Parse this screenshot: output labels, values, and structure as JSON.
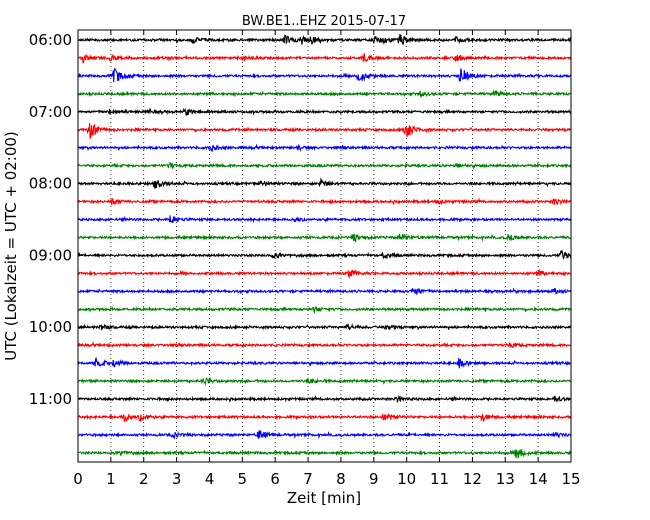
{
  "chart_data": {
    "type": "line",
    "title": "BW.BE1..EHZ 2015-07-17",
    "xlabel": "Zeit  [min]",
    "ylabel": "UTC (Lokalzeit = UTC + 02:00)",
    "xlim": [
      0,
      15
    ],
    "x_ticks": [
      "0",
      "1",
      "2",
      "3",
      "4",
      "5",
      "6",
      "7",
      "8",
      "9",
      "10",
      "11",
      "12",
      "13",
      "14",
      "15"
    ],
    "y_tick_labels": [
      "06:00",
      "07:00",
      "08:00",
      "09:00",
      "10:00",
      "11:00"
    ],
    "trace_start_minutes": [
      360,
      375,
      390,
      405,
      420,
      435,
      450,
      465,
      480,
      495,
      510,
      525,
      540,
      555,
      570,
      585,
      600,
      615,
      630,
      645,
      660,
      675,
      690,
      705
    ],
    "trace_colors": [
      "#000000",
      "#ff0000",
      "#0000ff",
      "#008000"
    ],
    "grid": "vertical dotted",
    "events": [
      {
        "trace": 0,
        "t": 3.5,
        "amp": 0.35
      },
      {
        "trace": 0,
        "t": 6.3,
        "amp": 0.5
      },
      {
        "trace": 0,
        "t": 6.8,
        "amp": 0.45
      },
      {
        "trace": 0,
        "t": 7.1,
        "amp": 0.45
      },
      {
        "trace": 0,
        "t": 9.0,
        "amp": 0.45
      },
      {
        "trace": 0,
        "t": 9.3,
        "amp": 0.35
      },
      {
        "trace": 0,
        "t": 9.8,
        "amp": 0.6
      },
      {
        "trace": 0,
        "t": 11.5,
        "amp": 0.25
      },
      {
        "trace": 0,
        "t": 15.0,
        "amp": 0.3
      },
      {
        "trace": 1,
        "t": 0.15,
        "amp": 0.45
      },
      {
        "trace": 1,
        "t": 1.0,
        "amp": 0.3
      },
      {
        "trace": 1,
        "t": 5.0,
        "amp": 0.2
      },
      {
        "trace": 1,
        "t": 8.7,
        "amp": 0.45
      },
      {
        "trace": 1,
        "t": 11.5,
        "amp": 0.45
      },
      {
        "trace": 2,
        "t": 1.1,
        "amp": 1.0
      },
      {
        "trace": 2,
        "t": 8.55,
        "amp": 0.8
      },
      {
        "trace": 2,
        "t": 11.65,
        "amp": 1.0
      },
      {
        "trace": 3,
        "t": 10.4,
        "amp": 0.3
      },
      {
        "trace": 3,
        "t": 12.7,
        "amp": 0.3
      },
      {
        "trace": 4,
        "t": 1.0,
        "amp": 0.3
      },
      {
        "trace": 4,
        "t": 2.1,
        "amp": 0.3
      },
      {
        "trace": 4,
        "t": 3.3,
        "amp": 0.35
      },
      {
        "trace": 4,
        "t": 15.0,
        "amp": 0.35
      },
      {
        "trace": 5,
        "t": 0.35,
        "amp": 1.0
      },
      {
        "trace": 5,
        "t": 9.95,
        "amp": 1.1
      },
      {
        "trace": 6,
        "t": 4.0,
        "amp": 0.35
      },
      {
        "trace": 6,
        "t": 6.7,
        "amp": 0.2
      },
      {
        "trace": 7,
        "t": 2.8,
        "amp": 0.3
      },
      {
        "trace": 7,
        "t": 11.5,
        "amp": 0.2
      },
      {
        "trace": 8,
        "t": 2.35,
        "amp": 0.55
      },
      {
        "trace": 8,
        "t": 5.6,
        "amp": 0.3
      },
      {
        "trace": 8,
        "t": 7.4,
        "amp": 0.45
      },
      {
        "trace": 9,
        "t": 1.0,
        "amp": 0.4
      },
      {
        "trace": 9,
        "t": 10.9,
        "amp": 0.25
      },
      {
        "trace": 9,
        "t": 14.5,
        "amp": 0.3
      },
      {
        "trace": 10,
        "t": 2.8,
        "amp": 0.55
      },
      {
        "trace": 10,
        "t": 6.6,
        "amp": 0.25
      },
      {
        "trace": 11,
        "t": 8.4,
        "amp": 0.4
      },
      {
        "trace": 11,
        "t": 9.8,
        "amp": 0.4
      },
      {
        "trace": 11,
        "t": 13.1,
        "amp": 0.35
      },
      {
        "trace": 12,
        "t": 5.9,
        "amp": 0.3
      },
      {
        "trace": 12,
        "t": 9.3,
        "amp": 0.3
      },
      {
        "trace": 12,
        "t": 14.7,
        "amp": 0.6
      },
      {
        "trace": 13,
        "t": 8.25,
        "amp": 0.4
      },
      {
        "trace": 13,
        "t": 14.0,
        "amp": 0.3
      },
      {
        "trace": 14,
        "t": 10.2,
        "amp": 0.5
      },
      {
        "trace": 14,
        "t": 14.5,
        "amp": 0.25
      },
      {
        "trace": 15,
        "t": 7.2,
        "amp": 0.25
      },
      {
        "trace": 16,
        "t": 0.7,
        "amp": 0.3
      },
      {
        "trace": 16,
        "t": 8.2,
        "amp": 0.3
      },
      {
        "trace": 16,
        "t": 9.4,
        "amp": 0.2
      },
      {
        "trace": 17,
        "t": 13.1,
        "amp": 0.3
      },
      {
        "trace": 18,
        "t": 0.55,
        "amp": 0.5
      },
      {
        "trace": 18,
        "t": 1.1,
        "amp": 0.4
      },
      {
        "trace": 18,
        "t": 11.6,
        "amp": 0.5
      },
      {
        "trace": 19,
        "t": 3.8,
        "amp": 0.35
      },
      {
        "trace": 19,
        "t": 7.0,
        "amp": 0.25
      },
      {
        "trace": 20,
        "t": 9.7,
        "amp": 0.3
      },
      {
        "trace": 20,
        "t": 14.5,
        "amp": 0.3
      },
      {
        "trace": 21,
        "t": 1.4,
        "amp": 0.5
      },
      {
        "trace": 21,
        "t": 1.9,
        "amp": 0.45
      },
      {
        "trace": 21,
        "t": 9.3,
        "amp": 0.35
      },
      {
        "trace": 21,
        "t": 12.25,
        "amp": 0.55
      },
      {
        "trace": 22,
        "t": 2.9,
        "amp": 0.25
      },
      {
        "trace": 22,
        "t": 5.5,
        "amp": 0.6
      },
      {
        "trace": 22,
        "t": 14.5,
        "amp": 0.3
      },
      {
        "trace": 23,
        "t": 13.35,
        "amp": 0.7
      },
      {
        "trace": 23,
        "t": 1.3,
        "amp": 0.2
      }
    ]
  }
}
